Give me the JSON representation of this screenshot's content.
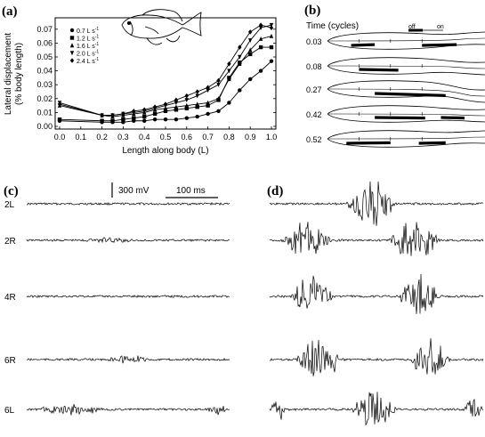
{
  "panels": {
    "a": {
      "letter": "(a)"
    },
    "b": {
      "letter": "(b)"
    },
    "c": {
      "letter": "(c)"
    },
    "d": {
      "letter": "(d)"
    }
  },
  "chart_data": {
    "type": "line",
    "xlabel": "Length along body (L)",
    "ylabel_line1": "Lateral displacement",
    "ylabel_line2": "(% body length)",
    "xlim": [
      0,
      1.0
    ],
    "ylim": [
      0,
      0.075
    ],
    "xticks": [
      "0.0",
      "0.1",
      "0.2",
      "0.3",
      "0.4",
      "0.5",
      "0.6",
      "0.7",
      "0.8",
      "0.9",
      "1.0"
    ],
    "yticks": [
      "0.00",
      "0.01",
      "0.02",
      "0.03",
      "0.04",
      "0.05",
      "0.06",
      "0.07"
    ],
    "legend_position": "top-left",
    "series": [
      {
        "name": "0.7 L s",
        "sup": "-1",
        "marker": "circle",
        "x": [
          0.0,
          0.2,
          0.25,
          0.3,
          0.35,
          0.4,
          0.45,
          0.5,
          0.55,
          0.6,
          0.65,
          0.7,
          0.75,
          0.8,
          0.85,
          0.9,
          0.95,
          1.0
        ],
        "y": [
          0.004,
          0.003,
          0.003,
          0.003,
          0.004,
          0.004,
          0.005,
          0.005,
          0.005,
          0.006,
          0.007,
          0.009,
          0.011,
          0.017,
          0.026,
          0.034,
          0.04,
          0.047
        ]
      },
      {
        "name": "1.2 L s",
        "sup": "-1",
        "marker": "square",
        "x": [
          0.0,
          0.2,
          0.25,
          0.3,
          0.35,
          0.4,
          0.45,
          0.5,
          0.55,
          0.6,
          0.65,
          0.7,
          0.75,
          0.8,
          0.85,
          0.9,
          0.95,
          1.0
        ],
        "y": [
          0.005,
          0.004,
          0.004,
          0.005,
          0.006,
          0.007,
          0.009,
          0.011,
          0.012,
          0.013,
          0.014,
          0.015,
          0.019,
          0.035,
          0.046,
          0.052,
          0.057,
          0.057
        ]
      },
      {
        "name": "1.6 L s",
        "sup": "-1",
        "marker": "triangle-up",
        "x": [
          0.0,
          0.2,
          0.25,
          0.3,
          0.35,
          0.4,
          0.45,
          0.5,
          0.55,
          0.6,
          0.65,
          0.7,
          0.75,
          0.8,
          0.85,
          0.9,
          0.95,
          1.0
        ],
        "y": [
          0.015,
          0.008,
          0.007,
          0.008,
          0.009,
          0.01,
          0.012,
          0.013,
          0.014,
          0.015,
          0.016,
          0.017,
          0.02,
          0.034,
          0.045,
          0.055,
          0.063,
          0.065
        ]
      },
      {
        "name": "2.0 L s",
        "sup": "-1",
        "marker": "triangle-down",
        "x": [
          0.0,
          0.2,
          0.25,
          0.3,
          0.35,
          0.4,
          0.45,
          0.5,
          0.55,
          0.6,
          0.65,
          0.7,
          0.75,
          0.8,
          0.85,
          0.9,
          0.95,
          1.0
        ],
        "y": [
          0.017,
          0.008,
          0.008,
          0.009,
          0.01,
          0.011,
          0.013,
          0.015,
          0.017,
          0.019,
          0.022,
          0.026,
          0.03,
          0.04,
          0.05,
          0.062,
          0.071,
          0.073
        ]
      },
      {
        "name": "2.4 L s",
        "sup": "-1",
        "marker": "diamond",
        "x": [
          0.0,
          0.2,
          0.25,
          0.3,
          0.35,
          0.4,
          0.45,
          0.5,
          0.55,
          0.6,
          0.65,
          0.7,
          0.75,
          0.8,
          0.85,
          0.9,
          0.95,
          1.0
        ],
        "y": [
          0.016,
          0.008,
          0.008,
          0.009,
          0.011,
          0.012,
          0.014,
          0.016,
          0.019,
          0.022,
          0.025,
          0.028,
          0.033,
          0.045,
          0.057,
          0.068,
          0.073,
          0.071
        ]
      }
    ]
  },
  "midline": {
    "header": "Time (cycles)",
    "off_label": "off",
    "on_label": "on",
    "rows": [
      {
        "time": "0.03",
        "bars": [
          [
            0.15,
            0.3
          ],
          [
            0.6,
            0.82
          ]
        ]
      },
      {
        "time": "0.08",
        "bars": [
          [
            0.2,
            0.45
          ]
        ]
      },
      {
        "time": "0.27",
        "bars": [
          [
            0.3,
            0.75
          ]
        ]
      },
      {
        "time": "0.42",
        "bars": [
          [
            0.3,
            0.62
          ],
          [
            0.72,
            0.87
          ]
        ]
      },
      {
        "time": "0.52",
        "bars": [
          [
            0.12,
            0.4
          ],
          [
            0.58,
            0.75
          ]
        ]
      }
    ]
  },
  "emg": {
    "scale_voltage": "300 mV",
    "scale_time": "100 ms",
    "c_traces": [
      {
        "label": "2L",
        "bursts": []
      },
      {
        "label": "2R",
        "bursts": [
          [
            0.25,
            0.55,
            0.35
          ]
        ]
      },
      {
        "label": "4R",
        "bursts": []
      },
      {
        "label": "6R",
        "bursts": [
          [
            0.38,
            0.62,
            0.45
          ]
        ]
      },
      {
        "label": "6L",
        "bursts": [
          [
            0.02,
            0.42,
            0.5
          ],
          [
            0.88,
            1.0,
            0.5
          ]
        ]
      }
    ],
    "d_traces": [
      {
        "bursts": [
          [
            0.35,
            0.6,
            1.0
          ]
        ]
      },
      {
        "bursts": [
          [
            0.05,
            0.3,
            0.8
          ],
          [
            0.55,
            0.8,
            1.0
          ]
        ]
      },
      {
        "bursts": [
          [
            0.1,
            0.3,
            1.0
          ],
          [
            0.6,
            0.8,
            1.0
          ]
        ]
      },
      {
        "bursts": [
          [
            0.12,
            0.35,
            1.0
          ],
          [
            0.65,
            0.85,
            1.0
          ]
        ]
      },
      {
        "bursts": [
          [
            0.0,
            0.08,
            0.5
          ],
          [
            0.38,
            0.6,
            1.0
          ],
          [
            0.9,
            1.0,
            0.5
          ]
        ]
      }
    ]
  }
}
